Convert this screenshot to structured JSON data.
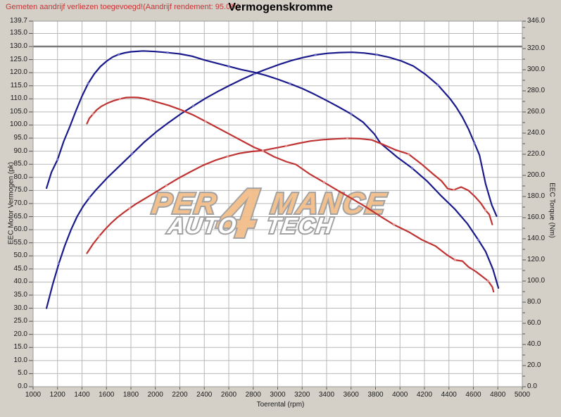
{
  "annotation": "Gemeten aandrijf verliezen toegevoegd!(Aandrijf rendement: 95.0%)",
  "header": {
    "title": "Vermogenskromme"
  },
  "watermark": {
    "line1_pre": "PER",
    "line1_num": "4",
    "line1_post": "MANCE",
    "line2_a": "AUTO",
    "line2_b": "TECH",
    "fill_orange": "#f2bd87",
    "fill_white": "#ffffff",
    "outline": "#9b9b9b"
  },
  "chart_data": {
    "type": "line",
    "title": "Vermogenskromme",
    "xlabel": "Toerental (rpm)",
    "ylabel_left": "EEC Motor Vermogen (pk)",
    "ylabel_right": "EEC Torque (Nm)",
    "x_min": 1000,
    "x_max": 5000,
    "y_left_max": 139.7,
    "y_right_max": 346.0,
    "x_ticks": [
      1000,
      1200,
      1400,
      1600,
      1800,
      2000,
      2200,
      2400,
      2600,
      2800,
      3000,
      3200,
      3400,
      3600,
      3800,
      4000,
      4200,
      4400,
      4600,
      4800,
      5000
    ],
    "y_left_ticks": [
      0,
      5,
      10,
      15,
      20,
      25,
      30,
      35,
      40,
      45,
      50,
      55,
      60,
      65,
      70,
      75,
      80,
      85,
      90,
      95,
      100,
      105,
      110,
      115,
      120,
      125,
      130,
      135,
      139.7
    ],
    "y_right_labeled_ticks": [
      0,
      20,
      40,
      60,
      80,
      100,
      120,
      140,
      160,
      180,
      200,
      220,
      240,
      260,
      280,
      300,
      320,
      346
    ],
    "grid": true,
    "highlight_gridline_pk": 130,
    "colors": {
      "power_after": "#1a1a8c",
      "power_before": "#c03333",
      "marker_blue": "#7070c8",
      "marker_red": "#e09090"
    },
    "series": [
      {
        "name": "vermogen-na-tuning",
        "axis": "left",
        "unit": "pk",
        "color": "#1a1a8c",
        "marker": "#7070c8",
        "points": [
          [
            1110,
            30
          ],
          [
            1160,
            39
          ],
          [
            1210,
            47
          ],
          [
            1260,
            54
          ],
          [
            1310,
            60
          ],
          [
            1360,
            65
          ],
          [
            1410,
            69
          ],
          [
            1460,
            72.2
          ],
          [
            1510,
            75
          ],
          [
            1560,
            77.5
          ],
          [
            1610,
            80
          ],
          [
            1710,
            84.5
          ],
          [
            1810,
            89
          ],
          [
            1910,
            93.5
          ],
          [
            2010,
            97.5
          ],
          [
            2110,
            101
          ],
          [
            2210,
            104.3
          ],
          [
            2310,
            107.3
          ],
          [
            2410,
            110.2
          ],
          [
            2510,
            112.8
          ],
          [
            2610,
            115.2
          ],
          [
            2710,
            117.5
          ],
          [
            2810,
            119.6
          ],
          [
            2910,
            121.4
          ],
          [
            3010,
            123.1
          ],
          [
            3110,
            124.6
          ],
          [
            3210,
            125.8
          ],
          [
            3310,
            126.8
          ],
          [
            3410,
            127.4
          ],
          [
            3510,
            127.7
          ],
          [
            3610,
            127.8
          ],
          [
            3710,
            127.5
          ],
          [
            3810,
            126.9
          ],
          [
            3910,
            125.9
          ],
          [
            4010,
            124.5
          ],
          [
            4110,
            122.5
          ],
          [
            4210,
            119.3
          ],
          [
            4310,
            115.3
          ],
          [
            4410,
            110
          ],
          [
            4460,
            106.8
          ],
          [
            4510,
            103
          ],
          [
            4560,
            98.5
          ],
          [
            4610,
            93
          ],
          [
            4650,
            88.5
          ],
          [
            4700,
            77.5
          ],
          [
            4750,
            69.5
          ],
          [
            4790,
            65.2
          ]
        ]
      },
      {
        "name": "koppel-na-tuning",
        "axis": "right",
        "unit": "Nm",
        "color": "#1a1a8c",
        "marker": "#7070c8",
        "points": [
          [
            1110,
            188
          ],
          [
            1150,
            203
          ],
          [
            1200,
            215
          ],
          [
            1250,
            232
          ],
          [
            1300,
            246
          ],
          [
            1350,
            261
          ],
          [
            1400,
            275
          ],
          [
            1450,
            287
          ],
          [
            1500,
            296
          ],
          [
            1550,
            303
          ],
          [
            1600,
            308
          ],
          [
            1650,
            312
          ],
          [
            1700,
            314.5
          ],
          [
            1750,
            316
          ],
          [
            1800,
            317
          ],
          [
            1900,
            317.8
          ],
          [
            2000,
            317.2
          ],
          [
            2100,
            316.2
          ],
          [
            2200,
            315
          ],
          [
            2300,
            312.8
          ],
          [
            2400,
            309.2
          ],
          [
            2500,
            306.2
          ],
          [
            2600,
            303.2
          ],
          [
            2700,
            300.2
          ],
          [
            2800,
            297.8
          ],
          [
            2900,
            294.8
          ],
          [
            3000,
            291
          ],
          [
            3100,
            286.8
          ],
          [
            3200,
            282.3
          ],
          [
            3300,
            276.8
          ],
          [
            3400,
            270.9
          ],
          [
            3500,
            264.7
          ],
          [
            3600,
            258.1
          ],
          [
            3700,
            250.2
          ],
          [
            3790,
            239.2
          ],
          [
            3840,
            230.5
          ],
          [
            3980,
            217
          ],
          [
            4100,
            206.8
          ],
          [
            4220,
            194.7
          ],
          [
            4330,
            181.4
          ],
          [
            4450,
            167.9
          ],
          [
            4550,
            154.5
          ],
          [
            4640,
            139
          ],
          [
            4700,
            127.9
          ],
          [
            4760,
            111.2
          ],
          [
            4805,
            93.5
          ]
        ]
      },
      {
        "name": "vermogen-voor-tuning",
        "axis": "left",
        "unit": "pk",
        "color": "#c03333",
        "marker": "#e09090",
        "points": [
          [
            1440,
            51
          ],
          [
            1490,
            54.5
          ],
          [
            1540,
            57.5
          ],
          [
            1590,
            60.2
          ],
          [
            1640,
            62.6
          ],
          [
            1690,
            64.7
          ],
          [
            1740,
            66.5
          ],
          [
            1790,
            68.2
          ],
          [
            1840,
            69.8
          ],
          [
            1890,
            71.2
          ],
          [
            1940,
            72.6
          ],
          [
            1990,
            74
          ],
          [
            2090,
            76.9
          ],
          [
            2190,
            79.7
          ],
          [
            2290,
            82.2
          ],
          [
            2390,
            84.6
          ],
          [
            2490,
            86.5
          ],
          [
            2590,
            88
          ],
          [
            2690,
            89.2
          ],
          [
            2790,
            89.9
          ],
          [
            2870,
            90.2
          ],
          [
            2970,
            91.1
          ],
          [
            3070,
            92
          ],
          [
            3170,
            93
          ],
          [
            3270,
            93.9
          ],
          [
            3370,
            94.4
          ],
          [
            3470,
            94.7
          ],
          [
            3570,
            94.9
          ],
          [
            3670,
            94.8
          ],
          [
            3770,
            94.3
          ],
          [
            3870,
            92.4
          ],
          [
            3970,
            90.4
          ],
          [
            4070,
            88.9
          ],
          [
            4170,
            85.3
          ],
          [
            4270,
            81.3
          ],
          [
            4340,
            78.6
          ],
          [
            4390,
            75.7
          ],
          [
            4440,
            75.2
          ],
          [
            4500,
            76.3
          ],
          [
            4560,
            75
          ],
          [
            4610,
            72.8
          ],
          [
            4660,
            70.2
          ],
          [
            4700,
            67.4
          ],
          [
            4730,
            65.8
          ],
          [
            4755,
            62
          ]
        ]
      },
      {
        "name": "koppel-voor-tuning",
        "axis": "right",
        "unit": "Nm",
        "color": "#c03333",
        "marker": "#e09090",
        "points": [
          [
            1440,
            249
          ],
          [
            1460,
            254
          ],
          [
            1490,
            258
          ],
          [
            1520,
            262
          ],
          [
            1560,
            265.5
          ],
          [
            1610,
            268.5
          ],
          [
            1660,
            270.7
          ],
          [
            1710,
            272.4
          ],
          [
            1760,
            273.7
          ],
          [
            1810,
            273.9
          ],
          [
            1860,
            273.7
          ],
          [
            1910,
            272.7
          ],
          [
            1960,
            271.2
          ],
          [
            2010,
            269.5
          ],
          [
            2110,
            266.2
          ],
          [
            2210,
            262
          ],
          [
            2310,
            257.1
          ],
          [
            2410,
            251.1
          ],
          [
            2510,
            244.9
          ],
          [
            2610,
            238.8
          ],
          [
            2710,
            232.6
          ],
          [
            2810,
            226.4
          ],
          [
            2880,
            223.2
          ],
          [
            2970,
            217.7
          ],
          [
            3070,
            213
          ],
          [
            3150,
            210.3
          ],
          [
            3260,
            201.4
          ],
          [
            3380,
            193.4
          ],
          [
            3490,
            185.8
          ],
          [
            3610,
            177.8
          ],
          [
            3720,
            170.2
          ],
          [
            3840,
            161.2
          ],
          [
            3950,
            153.3
          ],
          [
            4070,
            146.6
          ],
          [
            4180,
            139
          ],
          [
            4290,
            133.2
          ],
          [
            4390,
            124.3
          ],
          [
            4450,
            119.9
          ],
          [
            4510,
            118.9
          ],
          [
            4560,
            113.4
          ],
          [
            4620,
            109
          ],
          [
            4660,
            105.5
          ],
          [
            4720,
            100.1
          ],
          [
            4755,
            94.4
          ],
          [
            4765,
            89.9
          ]
        ]
      }
    ],
    "legend_position": "none"
  }
}
